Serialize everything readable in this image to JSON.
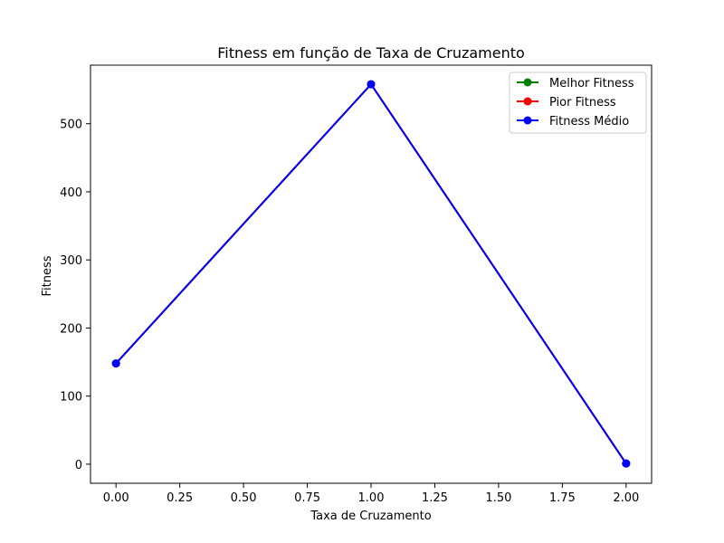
{
  "chart_data": {
    "type": "line",
    "title": "Fitness em função de Taxa de Cruzamento",
    "xlabel": "Taxa de Cruzamento",
    "ylabel": "Fitness",
    "xlim": [
      -0.1,
      2.1
    ],
    "ylim": [
      -28,
      586
    ],
    "x": [
      0.0,
      1.0,
      2.0
    ],
    "xticks": [
      0.0,
      0.25,
      0.5,
      0.75,
      1.0,
      1.25,
      1.5,
      1.75,
      2.0
    ],
    "xtick_labels": [
      "0.00",
      "0.25",
      "0.50",
      "0.75",
      "1.00",
      "1.25",
      "1.50",
      "1.75",
      "2.00"
    ],
    "yticks": [
      0,
      100,
      200,
      300,
      400,
      500
    ],
    "ytick_labels": [
      "0",
      "100",
      "200",
      "300",
      "400",
      "500"
    ],
    "grid": false,
    "legend_position": "top-right",
    "series": [
      {
        "name": "Melhor Fitness",
        "color": "#008000",
        "values": [
          148,
          558,
          1
        ]
      },
      {
        "name": "Pior Fitness",
        "color": "#ff0000",
        "values": [
          148,
          558,
          1
        ]
      },
      {
        "name": "Fitness Médio",
        "color": "#0000ff",
        "values": [
          148,
          558,
          1
        ]
      }
    ]
  }
}
